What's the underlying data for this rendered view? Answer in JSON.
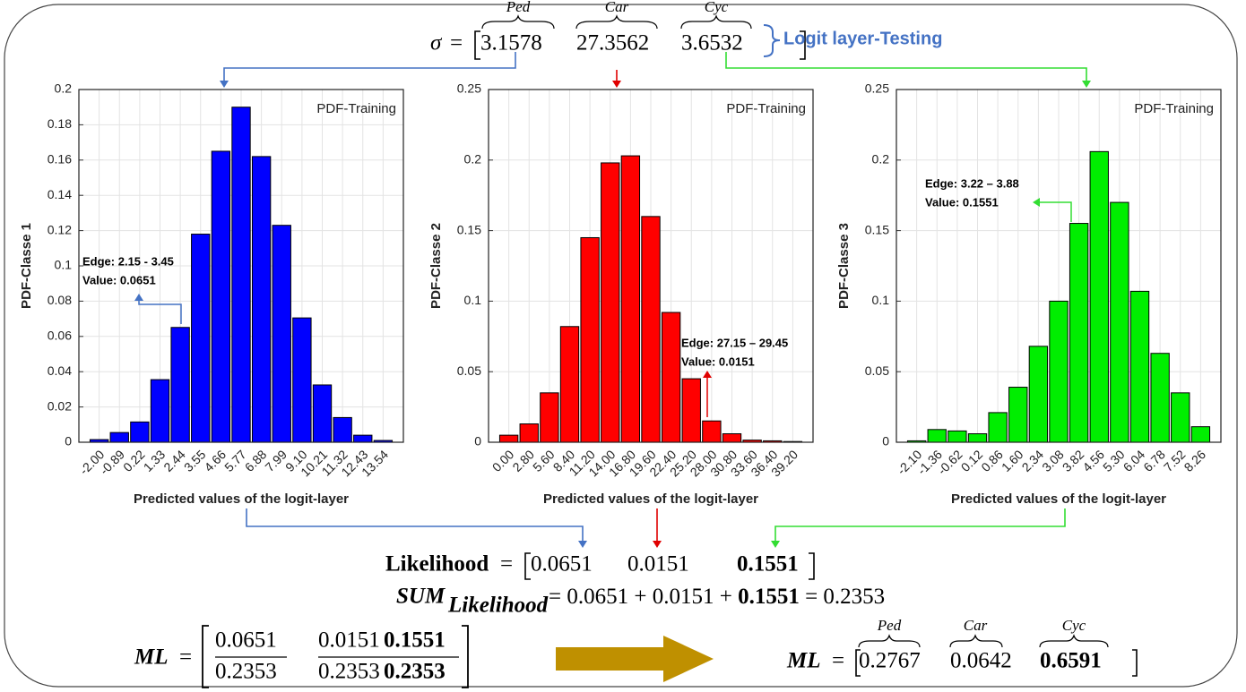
{
  "chart_data": [
    {
      "type": "bar",
      "color": "#0000ff",
      "ylabel": "PDF-Classe 1",
      "xlabel": "Predicted values of the logit-layer",
      "box_label": "PDF-Training",
      "annotation": [
        "Edge: 2.15 - 3.45",
        "Value: 0.0651"
      ],
      "categories": [
        "-2.00",
        "-0.89",
        "0.22",
        "1.33",
        "2.44",
        "3.55",
        "4.66",
        "5.77",
        "6.88",
        "7.99",
        "9.10",
        "10.21",
        "11.32",
        "12.43",
        "13.54"
      ],
      "values": [
        0.0015,
        0.0055,
        0.0115,
        0.0355,
        0.0651,
        0.118,
        0.165,
        0.19,
        0.162,
        0.123,
        0.0705,
        0.0325,
        0.014,
        0.004,
        0.001
      ],
      "ylim": [
        0,
        0.2
      ],
      "yticks": [
        0,
        0.02,
        0.04,
        0.06,
        0.08,
        0.1,
        0.12,
        0.14,
        0.16,
        0.18,
        0.2
      ],
      "grid": true
    },
    {
      "type": "bar",
      "color": "#ff0000",
      "ylabel": "PDF-Classe 2",
      "xlabel": "Predicted values of the logit-layer",
      "box_label": "PDF-Training",
      "annotation": [
        "Edge: 27.15 – 29.45",
        "Value: 0.0151"
      ],
      "categories": [
        "0.00",
        "2.80",
        "5.60",
        "8.40",
        "11.20",
        "14.00",
        "16.80",
        "19.60",
        "22.40",
        "25.20",
        "28.00",
        "30.80",
        "33.60",
        "36.40",
        "39.20"
      ],
      "values": [
        0.005,
        0.013,
        0.035,
        0.082,
        0.145,
        0.198,
        0.203,
        0.16,
        0.092,
        0.045,
        0.0151,
        0.006,
        0.0015,
        0.001,
        0.0005
      ],
      "ylim": [
        0,
        0.25
      ],
      "yticks": [
        0,
        0.05,
        0.1,
        0.15,
        0.2,
        0.25
      ],
      "grid": true
    },
    {
      "type": "bar",
      "color": "#00ee00",
      "ylabel": "PDF-Classe 3",
      "xlabel": "Predicted values of the logit-layer",
      "box_label": "PDF-Training",
      "annotation": [
        "Edge: 3.22 – 3.88",
        "Value: 0.1551"
      ],
      "categories": [
        "-2.10",
        "-1.36",
        "-0.62",
        "0.12",
        "0.86",
        "1.60",
        "2.34",
        "3.08",
        "3.82",
        "4.56",
        "5.30",
        "6.04",
        "6.78",
        "7.52",
        "8.26"
      ],
      "values": [
        0.001,
        0.009,
        0.008,
        0.006,
        0.021,
        0.039,
        0.068,
        0.1,
        0.1551,
        0.206,
        0.17,
        0.107,
        0.063,
        0.035,
        0.011
      ],
      "ylim": [
        0,
        0.25
      ],
      "yticks": [
        0,
        0.05,
        0.1,
        0.15,
        0.2,
        0.25
      ],
      "grid": true
    }
  ],
  "equations": {
    "sigma": {
      "symbol": "σ",
      "equals": "=",
      "labels": [
        "Ped",
        "Car",
        "Cyc"
      ],
      "values": [
        3.1578,
        27.3562,
        3.6532
      ],
      "tag": "Logit layer-Testing"
    },
    "likelihood": {
      "label": "Likelihood",
      "equals": "=",
      "values": [
        0.0651,
        0.0151,
        0.1551
      ]
    },
    "sum": {
      "label": "SUM",
      "subscript": "Likelihood",
      "terms": [
        "= 0.0651 + 0.0151 +",
        "0.1551",
        "= 0.2353"
      ]
    },
    "ml_fraction": {
      "label": "ML",
      "equals": "=",
      "numerators": [
        0.0651,
        0.0151,
        0.1551
      ],
      "denominators": [
        0.2353,
        0.2353,
        0.2353
      ]
    },
    "ml_result": {
      "label": "ML",
      "equals": "=",
      "labels": [
        "Ped",
        "Car",
        "Cyc"
      ],
      "values": [
        0.2767,
        0.0642,
        0.6591
      ]
    }
  }
}
